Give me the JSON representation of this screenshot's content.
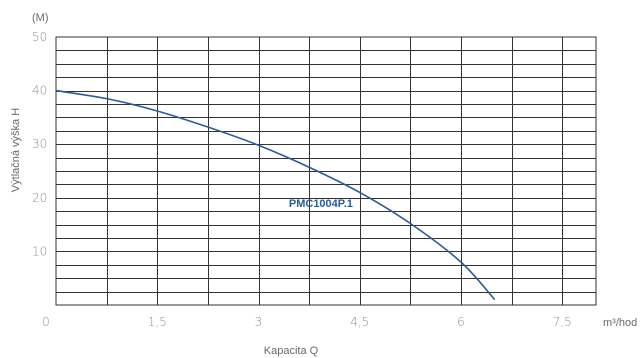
{
  "chart_data": {
    "type": "line",
    "title": "",
    "xlabel": "Kapacita Q",
    "x_unit": "m³/hod",
    "ylabel": "Výtlačná výška H",
    "y_unit": "(M)",
    "xlim": [
      0,
      8
    ],
    "ylim": [
      0,
      50
    ],
    "x_ticks": [
      {
        "value": 0,
        "label": "0"
      },
      {
        "value": 1.5,
        "label": "1,5"
      },
      {
        "value": 3,
        "label": "3"
      },
      {
        "value": 4.5,
        "label": "4,5"
      },
      {
        "value": 6,
        "label": "6"
      },
      {
        "value": 7.5,
        "label": "7,5"
      }
    ],
    "y_ticks": [
      {
        "value": 10,
        "label": "10"
      },
      {
        "value": 20,
        "label": "20"
      },
      {
        "value": 30,
        "label": "30"
      },
      {
        "value": 40,
        "label": "40"
      },
      {
        "value": 50,
        "label": "50"
      }
    ],
    "grid": true,
    "series": [
      {
        "name": "PMC1004P.1",
        "color": "#2c5a9a",
        "x": [
          0,
          0.75,
          1.5,
          2.25,
          3.0,
          3.75,
          4.5,
          5.25,
          6.0,
          6.5
        ],
        "y": [
          40,
          38.5,
          36.2,
          33.2,
          29.8,
          25.7,
          21.0,
          15.2,
          8.0,
          1.0
        ]
      }
    ]
  }
}
